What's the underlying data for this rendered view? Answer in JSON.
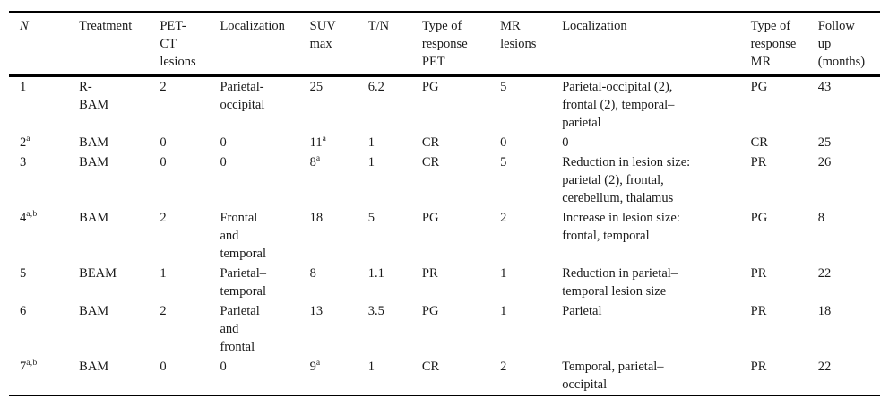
{
  "table": {
    "columns": [
      {
        "label": "N",
        "italic": true
      },
      {
        "label": "Treatment",
        "italic": false
      },
      {
        "label": "PET-\nCT\nlesions",
        "italic": false
      },
      {
        "label": "Localization",
        "italic": false
      },
      {
        "label": "SUV\nmax",
        "italic": false
      },
      {
        "label": "T/N",
        "italic": false
      },
      {
        "label": "Type of\nresponse\nPET",
        "italic": false
      },
      {
        "label": "MR\nlesions",
        "italic": false
      },
      {
        "label": "Localization",
        "italic": false
      },
      {
        "label": "Type of\nresponse\nMR",
        "italic": false
      },
      {
        "label": "Follow\nup\n(months)",
        "italic": false
      }
    ],
    "rows": [
      [
        {
          "text": "1"
        },
        {
          "text": "R-\nBAM"
        },
        {
          "text": "2"
        },
        {
          "text": "Parietal-\noccipital"
        },
        {
          "text": "25"
        },
        {
          "text": "6.2"
        },
        {
          "text": "PG"
        },
        {
          "text": "5"
        },
        {
          "text": "Parietal-occipital (2),\nfrontal (2), temporal–\nparietal"
        },
        {
          "text": "PG"
        },
        {
          "text": "43"
        }
      ],
      [
        {
          "text": "2",
          "sup": "a"
        },
        {
          "text": "BAM"
        },
        {
          "text": "0"
        },
        {
          "text": "0"
        },
        {
          "text": "11",
          "sup": "a"
        },
        {
          "text": "1"
        },
        {
          "text": "CR"
        },
        {
          "text": "0"
        },
        {
          "text": "0"
        },
        {
          "text": "CR"
        },
        {
          "text": "25"
        }
      ],
      [
        {
          "text": "3"
        },
        {
          "text": "BAM"
        },
        {
          "text": "0"
        },
        {
          "text": "0"
        },
        {
          "text": "8",
          "sup": "a"
        },
        {
          "text": "1"
        },
        {
          "text": "CR"
        },
        {
          "text": "5"
        },
        {
          "text": "Reduction in lesion size:\nparietal (2), frontal,\ncerebellum, thalamus"
        },
        {
          "text": "PR"
        },
        {
          "text": "26"
        }
      ],
      [
        {
          "text": "4",
          "sup": "a,b"
        },
        {
          "text": "BAM"
        },
        {
          "text": "2"
        },
        {
          "text": "Frontal\nand\ntemporal"
        },
        {
          "text": "18"
        },
        {
          "text": "5"
        },
        {
          "text": "PG"
        },
        {
          "text": "2"
        },
        {
          "text": "Increase in lesion size:\nfrontal, temporal"
        },
        {
          "text": "PG"
        },
        {
          "text": "8"
        }
      ],
      [
        {
          "text": "5"
        },
        {
          "text": "BEAM"
        },
        {
          "text": "1"
        },
        {
          "text": "Parietal–\ntemporal"
        },
        {
          "text": "8"
        },
        {
          "text": "1.1"
        },
        {
          "text": "PR"
        },
        {
          "text": "1"
        },
        {
          "text": "Reduction in parietal–\ntemporal lesion size"
        },
        {
          "text": "PR"
        },
        {
          "text": "22"
        }
      ],
      [
        {
          "text": "6"
        },
        {
          "text": "BAM"
        },
        {
          "text": "2"
        },
        {
          "text": "Parietal\nand\nfrontal"
        },
        {
          "text": "13"
        },
        {
          "text": "3.5"
        },
        {
          "text": "PG"
        },
        {
          "text": "1"
        },
        {
          "text": "Parietal"
        },
        {
          "text": "PR"
        },
        {
          "text": "18"
        }
      ],
      [
        {
          "text": "7",
          "sup": "a,b"
        },
        {
          "text": "BAM"
        },
        {
          "text": "0"
        },
        {
          "text": "0"
        },
        {
          "text": "9",
          "sup": "a"
        },
        {
          "text": "1"
        },
        {
          "text": "CR"
        },
        {
          "text": "2"
        },
        {
          "text": "Temporal, parietal–\noccipital"
        },
        {
          "text": "PR"
        },
        {
          "text": "22"
        }
      ]
    ]
  }
}
